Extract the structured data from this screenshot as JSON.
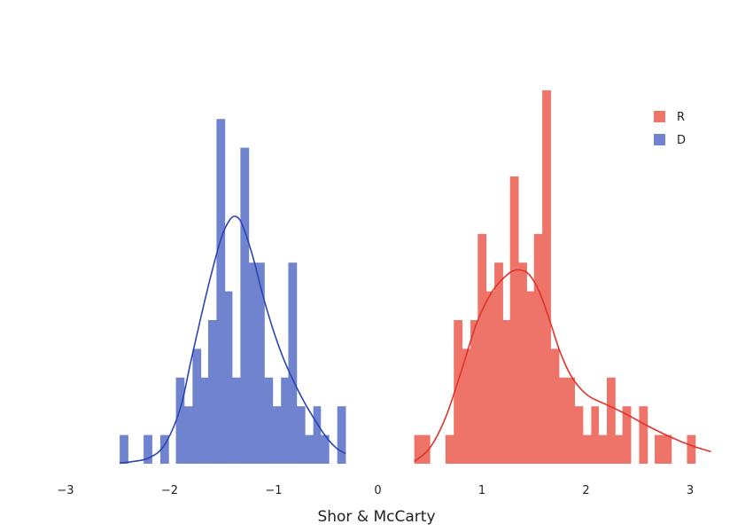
{
  "chart_data": {
    "type": "histogram",
    "xlabel": "Shor & McCarty",
    "xlim": [
      -3,
      3.2
    ],
    "ylim": [
      0,
      15
    ],
    "x_ticks": [
      -3,
      -2,
      -1,
      0,
      1,
      2,
      3
    ],
    "x_tick_labels": [
      "−3",
      "−2",
      "−1",
      "0",
      "1",
      "2",
      "3"
    ],
    "grid": false,
    "y_axis_visible": false,
    "legend": {
      "placement": "top-right",
      "entries": [
        "R",
        "D"
      ]
    },
    "bin_width": 0.0775,
    "series": [
      {
        "name": "D",
        "color": "#6F83CF",
        "line_color": "#2B45B0",
        "bins": [
          {
            "x0": -2.48,
            "x1": -2.4,
            "count": 1
          },
          {
            "x0": -2.25,
            "x1": -2.17,
            "count": 1
          },
          {
            "x0": -2.09,
            "x1": -2.01,
            "count": 1
          },
          {
            "x0": -1.94,
            "x1": -1.86,
            "count": 3
          },
          {
            "x0": -1.86,
            "x1": -1.78,
            "count": 2
          },
          {
            "x0": -1.78,
            "x1": -1.7,
            "count": 4
          },
          {
            "x0": -1.7,
            "x1": -1.63,
            "count": 3
          },
          {
            "x0": -1.63,
            "x1": -1.55,
            "count": 5
          },
          {
            "x0": -1.55,
            "x1": -1.47,
            "count": 12
          },
          {
            "x0": -1.47,
            "x1": -1.4,
            "count": 6
          },
          {
            "x0": -1.4,
            "x1": -1.32,
            "count": 3
          },
          {
            "x0": -1.32,
            "x1": -1.24,
            "count": 11
          },
          {
            "x0": -1.24,
            "x1": -1.16,
            "count": 7
          },
          {
            "x0": -1.16,
            "x1": -1.09,
            "count": 7
          },
          {
            "x0": -1.09,
            "x1": -1.01,
            "count": 3
          },
          {
            "x0": -1.01,
            "x1": -0.93,
            "count": 2
          },
          {
            "x0": -0.93,
            "x1": -0.86,
            "count": 3
          },
          {
            "x0": -0.86,
            "x1": -0.78,
            "count": 7
          },
          {
            "x0": -0.78,
            "x1": -0.7,
            "count": 2
          },
          {
            "x0": -0.7,
            "x1": -0.62,
            "count": 1
          },
          {
            "x0": -0.62,
            "x1": -0.55,
            "count": 2
          },
          {
            "x0": -0.55,
            "x1": -0.47,
            "count": 1
          },
          {
            "x0": -0.39,
            "x1": -0.31,
            "count": 2
          }
        ],
        "density_curve": [
          {
            "x": -2.48,
            "y": 0.02
          },
          {
            "x": -2.35,
            "y": 0.08
          },
          {
            "x": -2.2,
            "y": 0.2
          },
          {
            "x": -2.05,
            "y": 0.65
          },
          {
            "x": -1.9,
            "y": 1.9
          },
          {
            "x": -1.8,
            "y": 3.5
          },
          {
            "x": -1.7,
            "y": 5.1
          },
          {
            "x": -1.6,
            "y": 6.6
          },
          {
            "x": -1.5,
            "y": 7.9
          },
          {
            "x": -1.42,
            "y": 8.5
          },
          {
            "x": -1.36,
            "y": 8.6
          },
          {
            "x": -1.3,
            "y": 8.3
          },
          {
            "x": -1.2,
            "y": 7.2
          },
          {
            "x": -1.1,
            "y": 5.8
          },
          {
            "x": -1.0,
            "y": 4.6
          },
          {
            "x": -0.9,
            "y": 3.6
          },
          {
            "x": -0.8,
            "y": 2.8
          },
          {
            "x": -0.7,
            "y": 2.1
          },
          {
            "x": -0.6,
            "y": 1.5
          },
          {
            "x": -0.5,
            "y": 0.95
          },
          {
            "x": -0.4,
            "y": 0.55
          },
          {
            "x": -0.31,
            "y": 0.35
          }
        ]
      },
      {
        "name": "R",
        "color": "#EE7368",
        "line_color": "#E0332A",
        "bins": [
          {
            "x0": 0.35,
            "x1": 0.43,
            "count": 1
          },
          {
            "x0": 0.43,
            "x1": 0.5,
            "count": 1
          },
          {
            "x0": 0.65,
            "x1": 0.73,
            "count": 1
          },
          {
            "x0": 0.73,
            "x1": 0.81,
            "count": 5
          },
          {
            "x0": 0.81,
            "x1": 0.89,
            "count": 4
          },
          {
            "x0": 0.89,
            "x1": 0.96,
            "count": 5
          },
          {
            "x0": 0.96,
            "x1": 1.04,
            "count": 8
          },
          {
            "x0": 1.04,
            "x1": 1.12,
            "count": 6
          },
          {
            "x0": 1.12,
            "x1": 1.2,
            "count": 7
          },
          {
            "x0": 1.2,
            "x1": 1.27,
            "count": 5
          },
          {
            "x0": 1.27,
            "x1": 1.35,
            "count": 10
          },
          {
            "x0": 1.35,
            "x1": 1.43,
            "count": 7
          },
          {
            "x0": 1.43,
            "x1": 1.5,
            "count": 6
          },
          {
            "x0": 1.5,
            "x1": 1.58,
            "count": 8
          },
          {
            "x0": 1.58,
            "x1": 1.66,
            "count": 13
          },
          {
            "x0": 1.66,
            "x1": 1.74,
            "count": 4
          },
          {
            "x0": 1.74,
            "x1": 1.81,
            "count": 3
          },
          {
            "x0": 1.81,
            "x1": 1.89,
            "count": 3
          },
          {
            "x0": 1.89,
            "x1": 1.97,
            "count": 2
          },
          {
            "x0": 1.97,
            "x1": 2.05,
            "count": 1
          },
          {
            "x0": 2.05,
            "x1": 2.12,
            "count": 2
          },
          {
            "x0": 2.12,
            "x1": 2.2,
            "count": 1
          },
          {
            "x0": 2.2,
            "x1": 2.28,
            "count": 3
          },
          {
            "x0": 2.28,
            "x1": 2.35,
            "count": 1
          },
          {
            "x0": 2.35,
            "x1": 2.43,
            "count": 2
          },
          {
            "x0": 2.51,
            "x1": 2.59,
            "count": 2
          },
          {
            "x0": 2.66,
            "x1": 2.74,
            "count": 1
          },
          {
            "x0": 2.74,
            "x1": 2.82,
            "count": 1
          },
          {
            "x0": 2.97,
            "x1": 3.05,
            "count": 1
          }
        ],
        "density_curve": [
          {
            "x": 0.35,
            "y": 0.08
          },
          {
            "x": 0.5,
            "y": 0.55
          },
          {
            "x": 0.65,
            "y": 1.6
          },
          {
            "x": 0.8,
            "y": 3.2
          },
          {
            "x": 0.95,
            "y": 4.9
          },
          {
            "x": 1.1,
            "y": 6.0
          },
          {
            "x": 1.25,
            "y": 6.6
          },
          {
            "x": 1.35,
            "y": 6.75
          },
          {
            "x": 1.45,
            "y": 6.6
          },
          {
            "x": 1.55,
            "y": 6.0
          },
          {
            "x": 1.65,
            "y": 5.0
          },
          {
            "x": 1.75,
            "y": 3.9
          },
          {
            "x": 1.85,
            "y": 3.1
          },
          {
            "x": 1.95,
            "y": 2.6
          },
          {
            "x": 2.05,
            "y": 2.3
          },
          {
            "x": 2.2,
            "y": 2.05
          },
          {
            "x": 2.4,
            "y": 1.7
          },
          {
            "x": 2.6,
            "y": 1.3
          },
          {
            "x": 2.8,
            "y": 0.95
          },
          {
            "x": 3.0,
            "y": 0.65
          },
          {
            "x": 3.2,
            "y": 0.42
          }
        ]
      }
    ]
  }
}
